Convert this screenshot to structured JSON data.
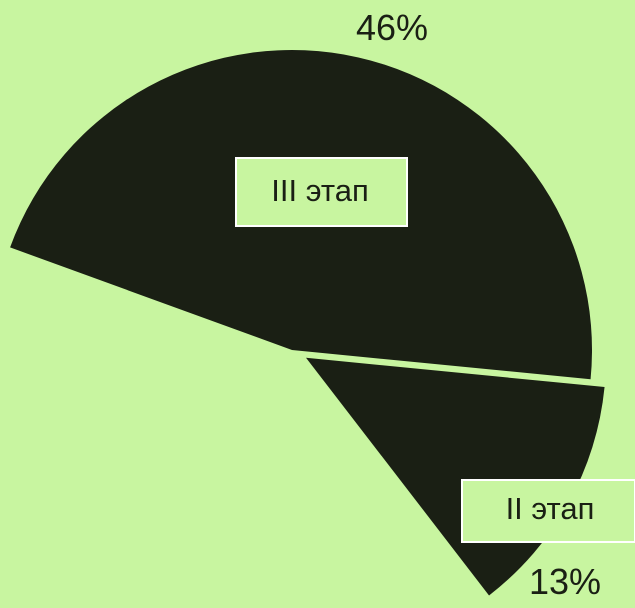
{
  "colors": {
    "background": "#c8f5a0",
    "slice": "#1a1f14",
    "label_box_fill": "#c8f5a0",
    "label_box_stroke": "#ffffff",
    "text": "#1a1f14"
  },
  "chart_data": {
    "type": "pie",
    "title": "",
    "slices": [
      {
        "label": "III этап",
        "value": 46,
        "value_label": "46%",
        "exploded": false
      },
      {
        "label": "II этап",
        "value": 13,
        "value_label": "13%",
        "exploded": true
      }
    ],
    "legend": "none",
    "crop_note_visible_only": true
  }
}
